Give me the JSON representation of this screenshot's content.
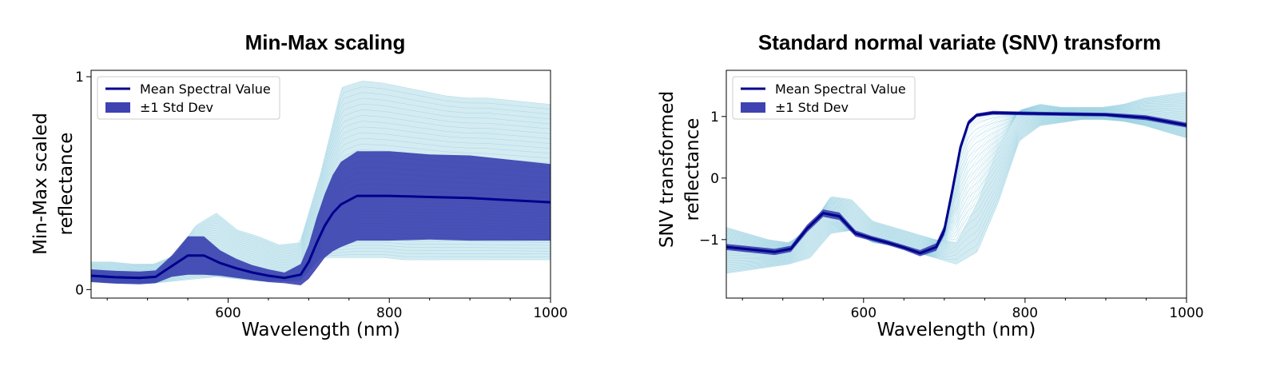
{
  "colors": {
    "mean": "#00008b",
    "std_fill": "#2a2ea8",
    "spectra": "#9fd3e3",
    "frame": "#000000"
  },
  "chart_data": [
    {
      "type": "line",
      "title": "Min-Max scaling",
      "xlabel": "Wavelength (nm)",
      "ylabel_lines": [
        "Min-Max scaled",
        "reflectance"
      ],
      "xlim": [
        430,
        1000
      ],
      "ylim": [
        -0.04,
        1.03
      ],
      "xticks": [
        600,
        800,
        1000
      ],
      "yticks": [
        0,
        1
      ],
      "legend": {
        "placement": "upper-left",
        "entries": [
          "Mean Spectral Value",
          "±1 Std Dev"
        ]
      },
      "spectra_band": {
        "min": [
          0.04,
          0.03,
          0.03,
          0.03,
          0.04,
          0.05,
          0.06,
          0.05,
          0.04,
          0.04,
          0.04,
          0.15,
          0.15,
          0.15,
          0.15,
          0.14,
          0.14,
          0.14,
          0.14,
          0.14,
          0.14,
          0.14,
          0.14
        ],
        "max": [
          0.13,
          0.13,
          0.12,
          0.12,
          0.16,
          0.3,
          0.36,
          0.28,
          0.25,
          0.21,
          0.22,
          0.55,
          0.95,
          0.98,
          0.97,
          0.95,
          0.93,
          0.91,
          0.9,
          0.9,
          0.89,
          0.88,
          0.87
        ]
      },
      "series": [
        {
          "name": "Mean Spectral Value",
          "x": [
            430,
            460,
            490,
            510,
            530,
            550,
            570,
            590,
            610,
            630,
            650,
            670,
            690,
            700,
            710,
            720,
            730,
            740,
            760,
            800,
            850,
            900,
            950,
            1000
          ],
          "y": [
            0.065,
            0.058,
            0.055,
            0.06,
            0.11,
            0.16,
            0.16,
            0.125,
            0.1,
            0.08,
            0.065,
            0.055,
            0.07,
            0.13,
            0.22,
            0.3,
            0.36,
            0.4,
            0.44,
            0.44,
            0.435,
            0.43,
            0.42,
            0.41
          ],
          "std": [
            0.03,
            0.03,
            0.03,
            0.03,
            0.05,
            0.09,
            0.09,
            0.06,
            0.045,
            0.035,
            0.03,
            0.025,
            0.05,
            0.08,
            0.12,
            0.15,
            0.18,
            0.2,
            0.21,
            0.21,
            0.2,
            0.2,
            0.19,
            0.18
          ]
        }
      ]
    },
    {
      "type": "line",
      "title": "Standard normal variate (SNV) transform",
      "xlabel": "Wavelength (nm)",
      "ylabel_lines": [
        "SNV transformed",
        "reflectance"
      ],
      "xlim": [
        430,
        1000
      ],
      "ylim": [
        -1.95,
        1.75
      ],
      "xticks": [
        600,
        800,
        1000
      ],
      "yticks": [
        -1,
        0,
        1
      ],
      "legend": {
        "placement": "upper-left",
        "entries": [
          "Mean Spectral Value",
          "±1 Std Dev"
        ]
      },
      "spectra_band": {
        "min": [
          -1.55,
          -1.5,
          -1.45,
          -1.4,
          -1.3,
          -0.9,
          -0.85,
          -1.05,
          -1.1,
          -1.2,
          -1.3,
          -1.4,
          -1.2,
          -0.4,
          0.6,
          0.85,
          0.9,
          0.95,
          0.95,
          0.92,
          0.85,
          0.75,
          0.65
        ],
        "max": [
          -0.8,
          -0.9,
          -1.0,
          -1.05,
          -0.8,
          -0.3,
          -0.35,
          -0.7,
          -0.8,
          -0.9,
          -1.0,
          -1.05,
          -0.4,
          0.5,
          1.1,
          1.2,
          1.15,
          1.15,
          1.15,
          1.2,
          1.3,
          1.35,
          1.4
        ]
      },
      "series": [
        {
          "name": "Mean Spectral Value",
          "x": [
            430,
            460,
            490,
            510,
            530,
            550,
            570,
            590,
            610,
            630,
            650,
            670,
            690,
            700,
            710,
            720,
            730,
            740,
            760,
            800,
            850,
            900,
            950,
            1000
          ],
          "y": [
            -1.12,
            -1.16,
            -1.2,
            -1.15,
            -0.82,
            -0.57,
            -0.62,
            -0.9,
            -0.98,
            -1.05,
            -1.13,
            -1.22,
            -1.12,
            -0.85,
            -0.2,
            0.5,
            0.9,
            1.02,
            1.06,
            1.05,
            1.04,
            1.03,
            0.98,
            0.86
          ],
          "std": [
            0.05,
            0.05,
            0.05,
            0.05,
            0.06,
            0.06,
            0.06,
            0.05,
            0.04,
            0.04,
            0.04,
            0.05,
            0.06,
            0.08,
            0.1,
            0.06,
            0.04,
            0.03,
            0.03,
            0.03,
            0.03,
            0.03,
            0.04,
            0.04
          ]
        }
      ]
    }
  ]
}
